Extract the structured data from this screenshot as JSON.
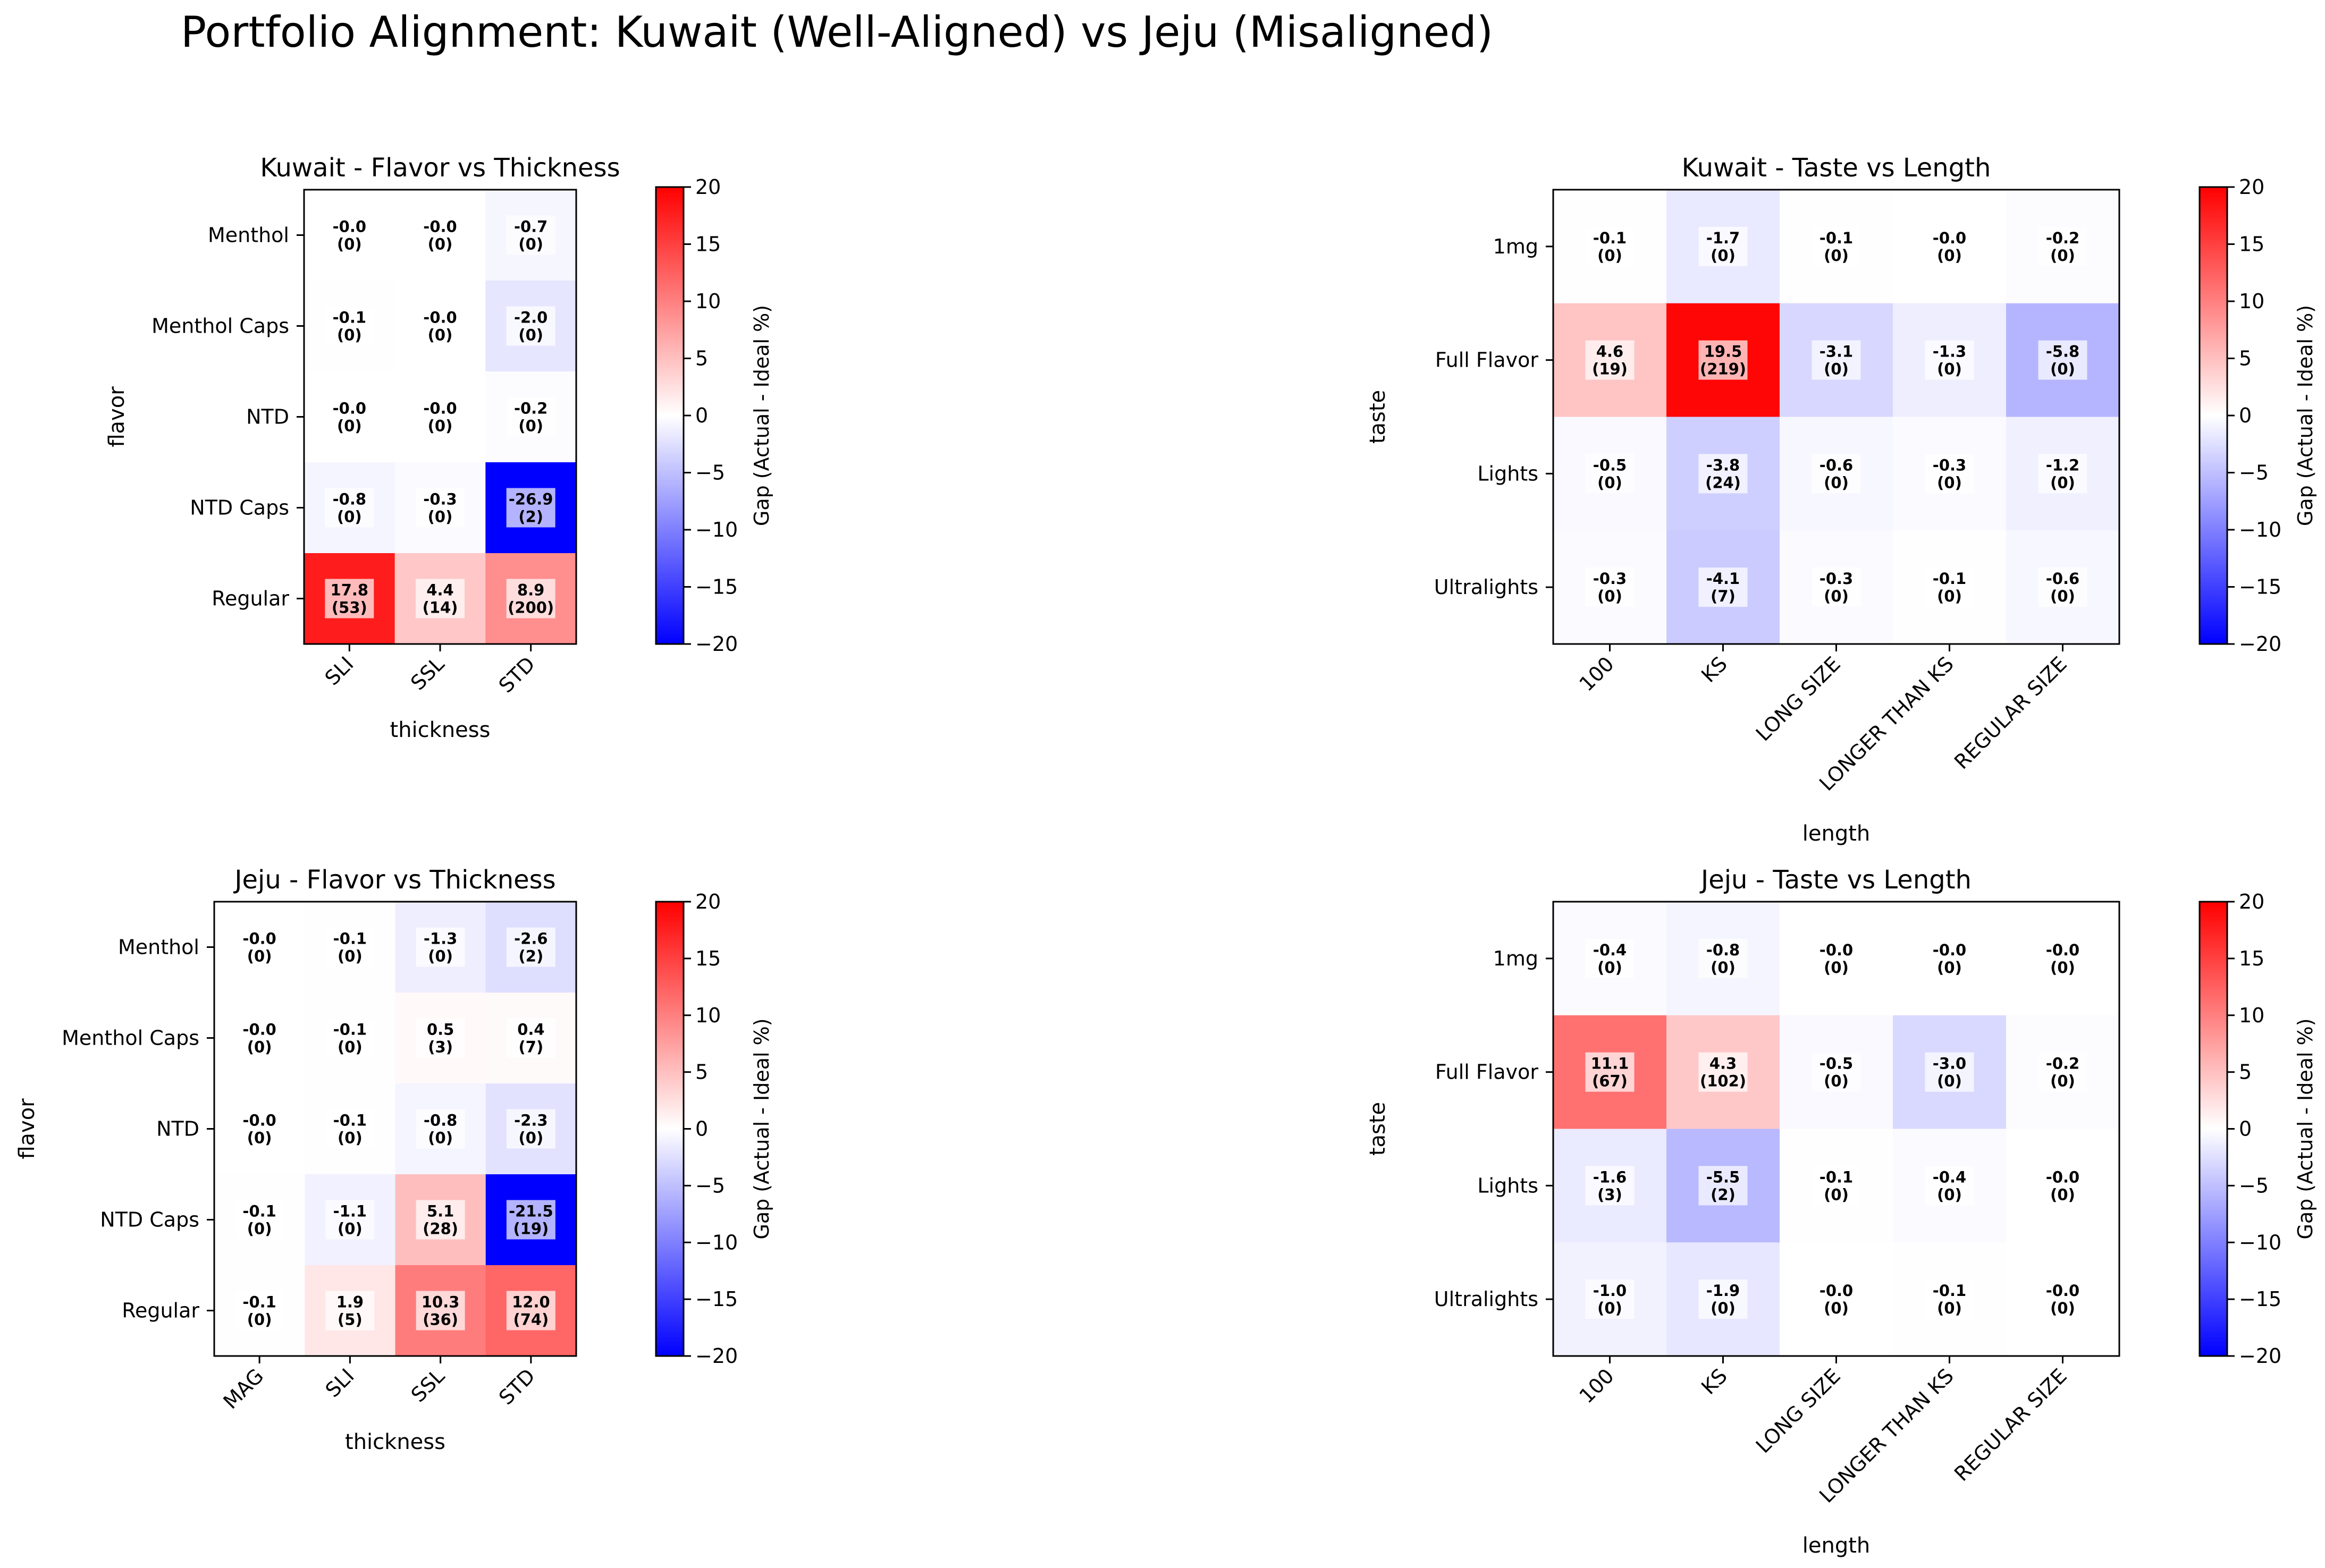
{
  "figure": {
    "title": "Portfolio Alignment: Kuwait (Well-Aligned) vs Jeju (Misaligned)"
  },
  "colorbar": {
    "label": "Gap (Actual - Ideal %)",
    "ticks": [
      -20,
      -15,
      -10,
      -5,
      0,
      5,
      10,
      15,
      20
    ],
    "range": [
      -20,
      20
    ],
    "colors": {
      "low": "#0000ff",
      "mid": "#ffffff",
      "high": "#ff0000"
    }
  },
  "chart_data": [
    {
      "type": "heatmap",
      "title": "Kuwait - Flavor vs Thickness",
      "xlabel": "thickness",
      "ylabel": "flavor",
      "x_categories": [
        "SLI",
        "SSL",
        "STD"
      ],
      "y_categories": [
        "Menthol",
        "Menthol Caps",
        "NTD",
        "NTD Caps",
        "Regular"
      ],
      "values": [
        [
          -0.0,
          -0.0,
          -0.7
        ],
        [
          -0.1,
          -0.0,
          -2.0
        ],
        [
          -0.0,
          -0.0,
          -0.2
        ],
        [
          -0.8,
          -0.3,
          -26.9
        ],
        [
          17.8,
          4.4,
          8.9
        ]
      ],
      "value_labels": [
        [
          "-0.0",
          "-0.0",
          "-0.7"
        ],
        [
          "-0.1",
          "-0.0",
          "-2.0"
        ],
        [
          "-0.0",
          "-0.0",
          "-0.2"
        ],
        [
          "-0.8",
          "-0.3",
          "-26.9"
        ],
        [
          "17.8",
          "4.4",
          "8.9"
        ]
      ],
      "counts": [
        [
          "(0)",
          "(0)",
          "(0)"
        ],
        [
          "(0)",
          "(0)",
          "(0)"
        ],
        [
          "(0)",
          "(0)",
          "(0)"
        ],
        [
          "(0)",
          "(0)",
          "(2)"
        ],
        [
          "(53)",
          "(14)",
          "(200)"
        ]
      ],
      "vmin": -20,
      "vmax": 20
    },
    {
      "type": "heatmap",
      "title": "Kuwait - Taste vs Length",
      "xlabel": "length",
      "ylabel": "taste",
      "x_categories": [
        "100",
        "KS",
        "LONG SIZE",
        "LONGER THAN KS",
        "REGULAR SIZE"
      ],
      "y_categories": [
        "1mg",
        "Full Flavor",
        "Lights",
        "Ultralights"
      ],
      "values": [
        [
          -0.1,
          -1.7,
          -0.1,
          -0.0,
          -0.2
        ],
        [
          4.6,
          19.5,
          -3.1,
          -1.3,
          -5.8
        ],
        [
          -0.5,
          -3.8,
          -0.6,
          -0.3,
          -1.2
        ],
        [
          -0.3,
          -4.1,
          -0.3,
          -0.1,
          -0.6
        ]
      ],
      "value_labels": [
        [
          "-0.1",
          "-1.7",
          "-0.1",
          "-0.0",
          "-0.2"
        ],
        [
          "4.6",
          "19.5",
          "-3.1",
          "-1.3",
          "-5.8"
        ],
        [
          "-0.5",
          "-3.8",
          "-0.6",
          "-0.3",
          "-1.2"
        ],
        [
          "-0.3",
          "-4.1",
          "-0.3",
          "-0.1",
          "-0.6"
        ]
      ],
      "counts": [
        [
          "(0)",
          "(0)",
          "(0)",
          "(0)",
          "(0)"
        ],
        [
          "(19)",
          "(219)",
          "(0)",
          "(0)",
          "(0)"
        ],
        [
          "(0)",
          "(24)",
          "(0)",
          "(0)",
          "(0)"
        ],
        [
          "(0)",
          "(7)",
          "(0)",
          "(0)",
          "(0)"
        ]
      ],
      "vmin": -20,
      "vmax": 20
    },
    {
      "type": "heatmap",
      "title": "Jeju - Flavor vs Thickness",
      "xlabel": "thickness",
      "ylabel": "flavor",
      "x_categories": [
        "MAG",
        "SLI",
        "SSL",
        "STD"
      ],
      "y_categories": [
        "Menthol",
        "Menthol Caps",
        "NTD",
        "NTD Caps",
        "Regular"
      ],
      "values": [
        [
          -0.0,
          -0.1,
          -1.3,
          -2.6
        ],
        [
          -0.0,
          -0.1,
          0.5,
          0.4
        ],
        [
          -0.0,
          -0.1,
          -0.8,
          -2.3
        ],
        [
          -0.1,
          -1.1,
          5.1,
          -21.5
        ],
        [
          -0.1,
          1.9,
          10.3,
          12.0
        ]
      ],
      "value_labels": [
        [
          "-0.0",
          "-0.1",
          "-1.3",
          "-2.6"
        ],
        [
          "-0.0",
          "-0.1",
          "0.5",
          "0.4"
        ],
        [
          "-0.0",
          "-0.1",
          "-0.8",
          "-2.3"
        ],
        [
          "-0.1",
          "-1.1",
          "5.1",
          "-21.5"
        ],
        [
          "-0.1",
          "1.9",
          "10.3",
          "12.0"
        ]
      ],
      "counts": [
        [
          "(0)",
          "(0)",
          "(0)",
          "(2)"
        ],
        [
          "(0)",
          "(0)",
          "(3)",
          "(7)"
        ],
        [
          "(0)",
          "(0)",
          "(0)",
          "(0)"
        ],
        [
          "(0)",
          "(0)",
          "(28)",
          "(19)"
        ],
        [
          "(0)",
          "(5)",
          "(36)",
          "(74)"
        ]
      ],
      "vmin": -20,
      "vmax": 20
    },
    {
      "type": "heatmap",
      "title": "Jeju - Taste vs Length",
      "xlabel": "length",
      "ylabel": "taste",
      "x_categories": [
        "100",
        "KS",
        "LONG SIZE",
        "LONGER THAN KS",
        "REGULAR SIZE"
      ],
      "y_categories": [
        "1mg",
        "Full Flavor",
        "Lights",
        "Ultralights"
      ],
      "values": [
        [
          -0.4,
          -0.8,
          -0.0,
          -0.0,
          -0.0
        ],
        [
          11.1,
          4.3,
          -0.5,
          -3.0,
          -0.2
        ],
        [
          -1.6,
          -5.5,
          -0.1,
          -0.4,
          -0.0
        ],
        [
          -1.0,
          -1.9,
          -0.0,
          -0.1,
          -0.0
        ]
      ],
      "value_labels": [
        [
          "-0.4",
          "-0.8",
          "-0.0",
          "-0.0",
          "-0.0"
        ],
        [
          "11.1",
          "4.3",
          "-0.5",
          "-3.0",
          "-0.2"
        ],
        [
          "-1.6",
          "-5.5",
          "-0.1",
          "-0.4",
          "-0.0"
        ],
        [
          "-1.0",
          "-1.9",
          "-0.0",
          "-0.1",
          "-0.0"
        ]
      ],
      "counts": [
        [
          "(0)",
          "(0)",
          "(0)",
          "(0)",
          "(0)"
        ],
        [
          "(67)",
          "(102)",
          "(0)",
          "(0)",
          "(0)"
        ],
        [
          "(3)",
          "(2)",
          "(0)",
          "(0)",
          "(0)"
        ],
        [
          "(0)",
          "(0)",
          "(0)",
          "(0)",
          "(0)"
        ]
      ],
      "vmin": -20,
      "vmax": 20
    }
  ]
}
